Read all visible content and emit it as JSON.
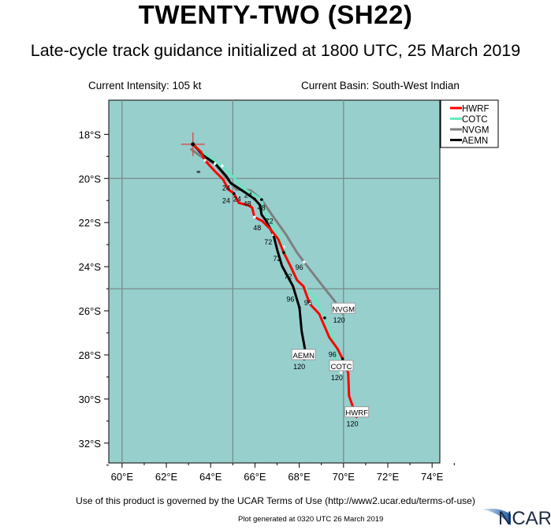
{
  "header": {
    "title": "TWENTY-TWO (SH22)",
    "subtitle": "Late-cycle track guidance initialized at 1800 UTC, 25 March 2019",
    "intensity": "Current Intensity: 105 kt",
    "basin": "Current Basin: South-West Indian"
  },
  "footer": {
    "terms": "Use of this product is governed by the UCAR Terms of Use (http://www2.ucar.edu/terms-of-use)",
    "generated": "Plot generated at 0320 UTC   26 March 2019",
    "logo": "NCAR"
  },
  "colors": {
    "ocean": "#97cfcd",
    "grid": "#7a8a8a"
  },
  "chart_data": {
    "type": "map-track",
    "lon_range": [
      59.4,
      74.35
    ],
    "lat_range": [
      16.45,
      32.9
    ],
    "lon_ticks": [
      "60°E",
      "62°E",
      "64°E",
      "66°E",
      "68°E",
      "70°E",
      "72°E",
      "74°E"
    ],
    "lat_ticks": [
      "18°S",
      "20°S",
      "22°S",
      "24°S",
      "26°S",
      "28°S",
      "30°S",
      "32°S"
    ],
    "grid_lon": [
      60,
      65,
      70
    ],
    "grid_lat": [
      20,
      25
    ],
    "current_position": [
      63.2,
      18.45
    ],
    "legend_placement": "top-right outside",
    "series": [
      {
        "name": "HWRF",
        "color": "#ff0000",
        "end_label": "HWRF",
        "end_hour": "120",
        "end_label_pos": [
          70.6,
          30.6
        ],
        "end_hour_pos": [
          70.4,
          31.1
        ],
        "points": [
          [
            63.23,
            18.48
          ],
          [
            63.56,
            18.79
          ],
          [
            63.74,
            19.18
          ],
          [
            64.2,
            19.68
          ],
          [
            64.56,
            20.04
          ],
          [
            64.8,
            20.5
          ],
          [
            65.05,
            20.68
          ],
          [
            65.27,
            21.11
          ],
          [
            65.69,
            21.21
          ],
          [
            65.87,
            21.32
          ],
          [
            65.98,
            21.75
          ],
          [
            66.33,
            21.93
          ],
          [
            66.69,
            22.29
          ],
          [
            67.05,
            22.75
          ],
          [
            67.3,
            23.36
          ],
          [
            67.65,
            24.07
          ],
          [
            67.9,
            24.61
          ],
          [
            68.19,
            24.89
          ],
          [
            68.47,
            25.68
          ],
          [
            68.9,
            26.14
          ],
          [
            69.36,
            27.21
          ],
          [
            69.72,
            27.71
          ],
          [
            69.96,
            28.18
          ],
          [
            70.21,
            28.82
          ],
          [
            70.25,
            29.86
          ],
          [
            70.6,
            30.86
          ]
        ]
      },
      {
        "name": "COTC",
        "color": "#66e8c0",
        "end_label": "COTC",
        "end_hour": "120",
        "end_label_pos": [
          69.9,
          28.5
        ],
        "end_hour_pos": [
          69.7,
          29.0
        ],
        "points": [
          [
            63.23,
            18.48
          ],
          [
            63.84,
            18.96
          ],
          [
            64.52,
            19.43
          ],
          [
            65.05,
            19.96
          ],
          [
            65.52,
            20.5
          ],
          [
            65.87,
            20.68
          ],
          [
            66.3,
            20.96
          ],
          [
            66.41,
            21.5
          ],
          [
            66.69,
            21.93
          ],
          [
            67.01,
            22.46
          ],
          [
            67.3,
            23.11
          ],
          [
            67.76,
            24.43
          ],
          [
            68.26,
            24.96
          ],
          [
            68.72,
            25.43
          ],
          [
            69.15,
            26.32
          ],
          [
            69.5,
            27.18
          ],
          [
            69.68,
            27.64
          ],
          [
            69.61,
            28.11
          ],
          [
            69.89,
            28.79
          ]
        ]
      },
      {
        "name": "NVGM",
        "color": "#7f7f7f",
        "end_label": "NVGM",
        "end_hour": "120",
        "end_label_pos": [
          70.0,
          25.9
        ],
        "end_hour_pos": [
          69.8,
          26.4
        ],
        "points": [
          [
            63.09,
            18.65
          ],
          [
            63.56,
            19.0
          ],
          [
            64.2,
            19.36
          ],
          [
            64.63,
            19.89
          ],
          [
            65.16,
            20.5
          ],
          [
            65.8,
            20.54
          ],
          [
            66.3,
            20.96
          ],
          [
            66.76,
            21.64
          ],
          [
            67.4,
            22.54
          ],
          [
            67.9,
            23.36
          ],
          [
            68.22,
            23.79
          ],
          [
            69.07,
            24.89
          ],
          [
            69.61,
            25.57
          ],
          [
            70.0,
            26.18
          ]
        ]
      },
      {
        "name": "AEMN",
        "color": "#000000",
        "end_label": "AEMN",
        "end_hour": "120",
        "end_label_pos": [
          68.2,
          28.0
        ],
        "end_hour_pos": [
          68.0,
          28.5
        ],
        "points": [
          [
            63.23,
            18.48
          ],
          [
            63.67,
            18.96
          ],
          [
            64.2,
            19.32
          ],
          [
            64.7,
            19.89
          ],
          [
            64.91,
            20.21
          ],
          [
            65.52,
            20.61
          ],
          [
            65.98,
            20.93
          ],
          [
            66.23,
            21.21
          ],
          [
            66.3,
            21.64
          ],
          [
            66.51,
            21.93
          ],
          [
            66.83,
            22.54
          ],
          [
            67.01,
            23.25
          ],
          [
            67.22,
            23.96
          ],
          [
            67.72,
            24.89
          ],
          [
            68.01,
            25.86
          ],
          [
            68.11,
            26.93
          ],
          [
            68.26,
            27.75
          ],
          [
            68.22,
            28.25
          ]
        ]
      }
    ],
    "hour_labels": [
      {
        "text": "24",
        "pos": [
          64.7,
          20.4
        ]
      },
      {
        "text": "24",
        "pos": [
          64.7,
          20.65
        ]
      },
      {
        "text": "24",
        "pos": [
          64.8,
          20.9
        ]
      },
      {
        "text": "24",
        "pos": [
          65.3,
          20.72
        ]
      },
      {
        "text": "48",
        "pos": [
          65.65,
          20.8
        ]
      },
      {
        "text": "48",
        "pos": [
          65.9,
          21.3
        ]
      },
      {
        "text": "48",
        "pos": [
          66.1,
          22.2
        ]
      },
      {
        "text": "72",
        "pos": [
          66.65,
          21.9
        ]
      },
      {
        "text": "72",
        "pos": [
          66.6,
          22.85
        ]
      },
      {
        "text": "72",
        "pos": [
          67.0,
          23.6
        ]
      },
      {
        "text": "72",
        "pos": [
          67.5,
          24.4
        ]
      },
      {
        "text": "96",
        "pos": [
          68.0,
          24.0
        ]
      },
      {
        "text": "96",
        "pos": [
          67.6,
          25.45
        ]
      },
      {
        "text": "96",
        "pos": [
          68.4,
          25.6
        ]
      },
      {
        "text": "96",
        "pos": [
          69.5,
          27.95
        ]
      }
    ]
  }
}
